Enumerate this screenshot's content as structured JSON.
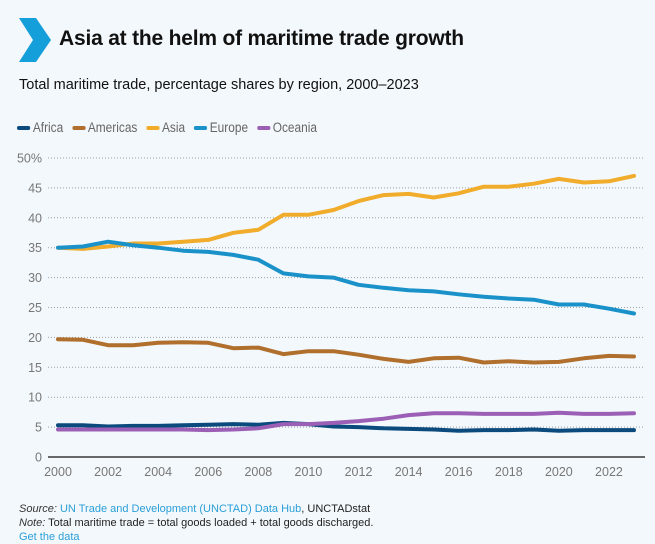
{
  "header": {
    "title": "Asia at the helm of maritime trade growth",
    "subtitle": "Total maritime trade, percentage shares by region, 2000–2023",
    "logo_icon": "chevron-right-icon",
    "accent_color": "#159fda"
  },
  "chart_data": {
    "type": "line",
    "title": "Total maritime trade, percentage shares by region, 2000–2023",
    "xlabel": "",
    "ylabel": "",
    "ylim": [
      0,
      50
    ],
    "yticks": [
      0,
      5,
      10,
      15,
      20,
      25,
      30,
      35,
      40,
      45,
      50
    ],
    "ytick_labels": [
      "0",
      "5",
      "10",
      "15",
      "20",
      "25",
      "30",
      "35",
      "40",
      "45",
      "50%"
    ],
    "xlim": [
      2000,
      2023
    ],
    "xticks": [
      2000,
      2002,
      2004,
      2006,
      2008,
      2010,
      2012,
      2014,
      2016,
      2018,
      2020,
      2022
    ],
    "xtick_labels": [
      "2000",
      "2002",
      "2004",
      "2006",
      "2008",
      "2010",
      "2012",
      "2014",
      "2016",
      "2018",
      "2020",
      "2022"
    ],
    "grid": "horizontal dotted",
    "legend_position": "top-left",
    "x": [
      2000,
      2001,
      2002,
      2003,
      2004,
      2005,
      2006,
      2007,
      2008,
      2009,
      2010,
      2011,
      2012,
      2013,
      2014,
      2015,
      2016,
      2017,
      2018,
      2019,
      2020,
      2021,
      2022,
      2023
    ],
    "series": [
      {
        "name": "Africa",
        "color": "#0b4a7d",
        "values": [
          5.3,
          5.3,
          5.1,
          5.2,
          5.2,
          5.3,
          5.4,
          5.5,
          5.4,
          5.7,
          5.5,
          5.1,
          5.0,
          4.8,
          4.7,
          4.6,
          4.4,
          4.5,
          4.5,
          4.6,
          4.4,
          4.5,
          4.5,
          4.5
        ]
      },
      {
        "name": "Americas",
        "color": "#b06f2c",
        "values": [
          19.7,
          19.6,
          18.7,
          18.7,
          19.1,
          19.2,
          19.1,
          18.2,
          18.3,
          17.2,
          17.7,
          17.7,
          17.1,
          16.4,
          15.9,
          16.5,
          16.6,
          15.8,
          16.0,
          15.8,
          15.9,
          16.5,
          16.9,
          16.8
        ]
      },
      {
        "name": "Asia",
        "color": "#f0ac2a",
        "values": [
          35.0,
          34.8,
          35.2,
          35.7,
          35.7,
          36.0,
          36.3,
          37.5,
          38.0,
          40.5,
          40.5,
          41.3,
          42.8,
          43.8,
          44.0,
          43.4,
          44.1,
          45.2,
          45.2,
          45.7,
          46.5,
          45.9,
          46.1,
          47.0
        ]
      },
      {
        "name": "Europe",
        "color": "#1a92c9",
        "values": [
          35.0,
          35.2,
          36.0,
          35.4,
          35.0,
          34.5,
          34.3,
          33.8,
          33.0,
          30.7,
          30.2,
          30.0,
          28.8,
          28.3,
          27.9,
          27.7,
          27.2,
          26.8,
          26.5,
          26.3,
          25.5,
          25.5,
          24.8,
          24.0
        ]
      },
      {
        "name": "Oceania",
        "color": "#9b5fb5",
        "values": [
          4.6,
          4.6,
          4.6,
          4.6,
          4.6,
          4.6,
          4.5,
          4.6,
          4.8,
          5.5,
          5.5,
          5.7,
          6.0,
          6.4,
          7.0,
          7.3,
          7.3,
          7.2,
          7.2,
          7.2,
          7.4,
          7.2,
          7.2,
          7.3
        ]
      }
    ]
  },
  "footer": {
    "source_label": "Source:",
    "source_link": "UN Trade and Development (UNCTAD) Data Hub",
    "source_sep": ", ",
    "source_rest": "UNCTADstat",
    "note_label": "Note:",
    "note_text": " Total maritime trade = total goods loaded + total goods discharged.",
    "data_link": "Get the data"
  }
}
